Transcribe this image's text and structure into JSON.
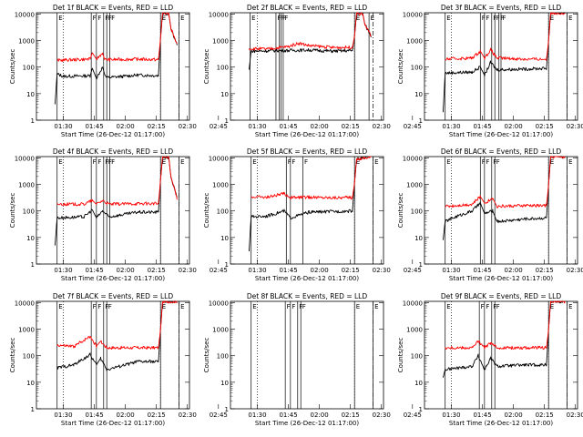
{
  "figure": {
    "x_tick_labels": [
      "01:30",
      "01:45",
      "02:00",
      "02:15",
      "02:30",
      "02:45"
    ],
    "x_label": "Start Time (26-Dec-12 01:17:00)",
    "y_label": "Counts/sec",
    "y_tick_labels": [
      "1",
      "10",
      "100",
      "1000",
      "10000"
    ],
    "colors": {
      "events": "#000000",
      "lld": "#ff0000",
      "axes": "#000000"
    }
  },
  "chart_data": [
    {
      "type": "line",
      "title": "Det 1f BLACK = Events, RED = LLD",
      "flags": [
        "E",
        "F",
        "F",
        "F",
        "F",
        "F",
        "E",
        "E"
      ],
      "series": [
        {
          "name": "Events",
          "anchors": [
            [
              26,
              4
            ],
            [
              27,
              55
            ],
            [
              30,
              45
            ],
            [
              43,
              47
            ],
            [
              44,
              90
            ],
            [
              46,
              38
            ],
            [
              49,
              100
            ],
            [
              50,
              52
            ],
            [
              51,
              40
            ],
            [
              66,
              50
            ],
            [
              76,
              48
            ],
            [
              77,
              1200
            ],
            [
              78,
              11000
            ],
            [
              81,
              10000
            ],
            [
              82,
              3000
            ],
            [
              85,
              700
            ]
          ]
        },
        {
          "name": "LLD",
          "anchors": [
            [
              27,
              180
            ],
            [
              43,
              200
            ],
            [
              44,
              350
            ],
            [
              46,
              200
            ],
            [
              49,
              340
            ],
            [
              50,
              190
            ],
            [
              66,
              200
            ],
            [
              76,
              190
            ],
            [
              77,
              1200
            ],
            [
              78,
              11000
            ],
            [
              81,
              10000
            ],
            [
              82,
              3000
            ],
            [
              85,
              700
            ]
          ]
        }
      ]
    },
    {
      "type": "line",
      "title": "Det 2f BLACK = Events, RED = LLD",
      "flags": [
        "E",
        "F",
        "F",
        "F",
        "F",
        "E",
        "E"
      ],
      "series": [
        {
          "name": "Events",
          "anchors": [
            [
              26,
              80
            ],
            [
              27,
              400
            ],
            [
              40,
              420
            ],
            [
              55,
              440
            ],
            [
              66,
              400
            ],
            [
              76,
              420
            ],
            [
              77,
              1500
            ],
            [
              78,
              11000
            ],
            [
              81,
              10000
            ],
            [
              82,
              4000
            ],
            [
              85,
              1500
            ]
          ]
        },
        {
          "name": "LLD",
          "anchors": [
            [
              26,
              500
            ],
            [
              35,
              480
            ],
            [
              45,
              600
            ],
            [
              50,
              800
            ],
            [
              55,
              650
            ],
            [
              66,
              550
            ],
            [
              76,
              560
            ],
            [
              77,
              1500
            ],
            [
              78,
              11000
            ],
            [
              81,
              10000
            ],
            [
              82,
              4000
            ],
            [
              85,
              1500
            ]
          ]
        }
      ]
    },
    {
      "type": "line",
      "title": "Det 3f BLACK = Events, RED = LLD",
      "flags": [
        "E",
        "F",
        "F",
        "F",
        "F",
        "F",
        "F",
        "E",
        "E"
      ],
      "series": [
        {
          "name": "Events",
          "anchors": [
            [
              26,
              2
            ],
            [
              27,
              60
            ],
            [
              40,
              65
            ],
            [
              44,
              100
            ],
            [
              46,
              50
            ],
            [
              49,
              150
            ],
            [
              52,
              80
            ],
            [
              66,
              85
            ],
            [
              76,
              90
            ],
            [
              77,
              1000
            ],
            [
              78,
              11000
            ],
            [
              85,
              11000
            ]
          ]
        },
        {
          "name": "LLD",
          "anchors": [
            [
              27,
              200
            ],
            [
              40,
              220
            ],
            [
              44,
              400
            ],
            [
              46,
              220
            ],
            [
              49,
              450
            ],
            [
              52,
              220
            ],
            [
              66,
              200
            ],
            [
              76,
              200
            ],
            [
              77,
              1000
            ],
            [
              78,
              11000
            ],
            [
              85,
              11000
            ]
          ]
        }
      ]
    },
    {
      "type": "line",
      "title": "Det 4f BLACK = Events, RED = LLD",
      "flags": [
        "E",
        "F",
        "F",
        "F",
        "F",
        "F",
        "E",
        "E"
      ],
      "series": [
        {
          "name": "Events",
          "anchors": [
            [
              26,
              5
            ],
            [
              27,
              55
            ],
            [
              40,
              60
            ],
            [
              44,
              110
            ],
            [
              46,
              55
            ],
            [
              49,
              100
            ],
            [
              52,
              60
            ],
            [
              66,
              90
            ],
            [
              76,
              90
            ],
            [
              77,
              1500
            ],
            [
              78,
              11000
            ],
            [
              81,
              10000
            ],
            [
              82,
              2000
            ],
            [
              85,
              300
            ]
          ]
        },
        {
          "name": "LLD",
          "anchors": [
            [
              27,
              180
            ],
            [
              40,
              180
            ],
            [
              44,
              250
            ],
            [
              46,
              180
            ],
            [
              49,
              250
            ],
            [
              52,
              180
            ],
            [
              66,
              190
            ],
            [
              76,
              190
            ],
            [
              77,
              1500
            ],
            [
              78,
              11000
            ],
            [
              81,
              10000
            ],
            [
              82,
              2000
            ],
            [
              85,
              300
            ]
          ]
        }
      ]
    },
    {
      "type": "line",
      "title": "Det 5f BLACK = Events, RED = LLD",
      "flags": [
        "E",
        "F",
        "F",
        "F",
        "E",
        "E"
      ],
      "series": [
        {
          "name": "Events",
          "anchors": [
            [
              26,
              3
            ],
            [
              27,
              60
            ],
            [
              35,
              65
            ],
            [
              43,
              100
            ],
            [
              46,
              55
            ],
            [
              55,
              90
            ],
            [
              66,
              95
            ],
            [
              76,
              100
            ],
            [
              77,
              1200
            ],
            [
              78,
              9000
            ],
            [
              85,
              11000
            ]
          ]
        },
        {
          "name": "LLD",
          "anchors": [
            [
              27,
              350
            ],
            [
              35,
              330
            ],
            [
              43,
              450
            ],
            [
              46,
              320
            ],
            [
              55,
              330
            ],
            [
              66,
              320
            ],
            [
              76,
              320
            ],
            [
              77,
              1200
            ],
            [
              78,
              9000
            ],
            [
              85,
              11000
            ]
          ]
        }
      ]
    },
    {
      "type": "line",
      "title": "Det 6f BLACK = Events, RED = LLD",
      "flags": [
        "E",
        "F",
        "F",
        "F",
        "F",
        "E",
        "E"
      ],
      "series": [
        {
          "name": "Events",
          "anchors": [
            [
              26,
              8
            ],
            [
              27,
              40
            ],
            [
              32,
              60
            ],
            [
              40,
              100
            ],
            [
              44,
              200
            ],
            [
              46,
              80
            ],
            [
              50,
              100
            ],
            [
              52,
              40
            ],
            [
              66,
              50
            ],
            [
              76,
              55
            ],
            [
              77,
              1000
            ],
            [
              78,
              11000
            ],
            [
              85,
              11000
            ]
          ]
        },
        {
          "name": "LLD",
          "anchors": [
            [
              27,
              150
            ],
            [
              40,
              180
            ],
            [
              44,
              350
            ],
            [
              46,
              200
            ],
            [
              50,
              300
            ],
            [
              52,
              150
            ],
            [
              66,
              160
            ],
            [
              76,
              160
            ],
            [
              77,
              1000
            ],
            [
              78,
              11000
            ],
            [
              85,
              11000
            ]
          ]
        }
      ]
    },
    {
      "type": "line",
      "title": "Det 7f BLACK = Events, RED = LLD",
      "flags": [
        "E",
        "F",
        "F",
        "F",
        "F",
        "E",
        "E"
      ],
      "series": [
        {
          "name": "Events",
          "anchors": [
            [
              27,
              35
            ],
            [
              35,
              45
            ],
            [
              43,
              110
            ],
            [
              46,
              45
            ],
            [
              48,
              80
            ],
            [
              51,
              30
            ],
            [
              66,
              60
            ],
            [
              76,
              60
            ],
            [
              77,
              1000
            ],
            [
              78,
              11000
            ],
            [
              85,
              11000
            ]
          ]
        },
        {
          "name": "LLD",
          "anchors": [
            [
              27,
              250
            ],
            [
              35,
              220
            ],
            [
              43,
              550
            ],
            [
              46,
              230
            ],
            [
              48,
              350
            ],
            [
              51,
              200
            ],
            [
              66,
              200
            ],
            [
              76,
              200
            ],
            [
              77,
              1000
            ],
            [
              78,
              11000
            ],
            [
              85,
              11000
            ]
          ]
        }
      ]
    },
    {
      "type": "line",
      "title": "Det 8f BLACK = Events, RED = LLD",
      "flags": [
        "E",
        "F",
        "F",
        "F",
        "F",
        "E",
        "E"
      ],
      "series": []
    },
    {
      "type": "line",
      "title": "Det 9f BLACK = Events, RED = LLD",
      "flags": [
        "E",
        "F",
        "F",
        "F",
        "F",
        "E",
        "E"
      ],
      "series": [
        {
          "name": "Events",
          "anchors": [
            [
              26,
              15
            ],
            [
              27,
              30
            ],
            [
              40,
              40
            ],
            [
              43,
              100
            ],
            [
              46,
              30
            ],
            [
              49,
              80
            ],
            [
              52,
              40
            ],
            [
              66,
              45
            ],
            [
              76,
              45
            ],
            [
              77,
              1000
            ],
            [
              78,
              11000
            ],
            [
              85,
              11000
            ]
          ]
        },
        {
          "name": "LLD",
          "anchors": [
            [
              27,
              200
            ],
            [
              40,
              200
            ],
            [
              43,
              350
            ],
            [
              46,
              200
            ],
            [
              49,
              300
            ],
            [
              52,
              200
            ],
            [
              66,
              200
            ],
            [
              76,
              200
            ],
            [
              77,
              1000
            ],
            [
              78,
              11000
            ],
            [
              85,
              11000
            ]
          ]
        }
      ]
    }
  ]
}
